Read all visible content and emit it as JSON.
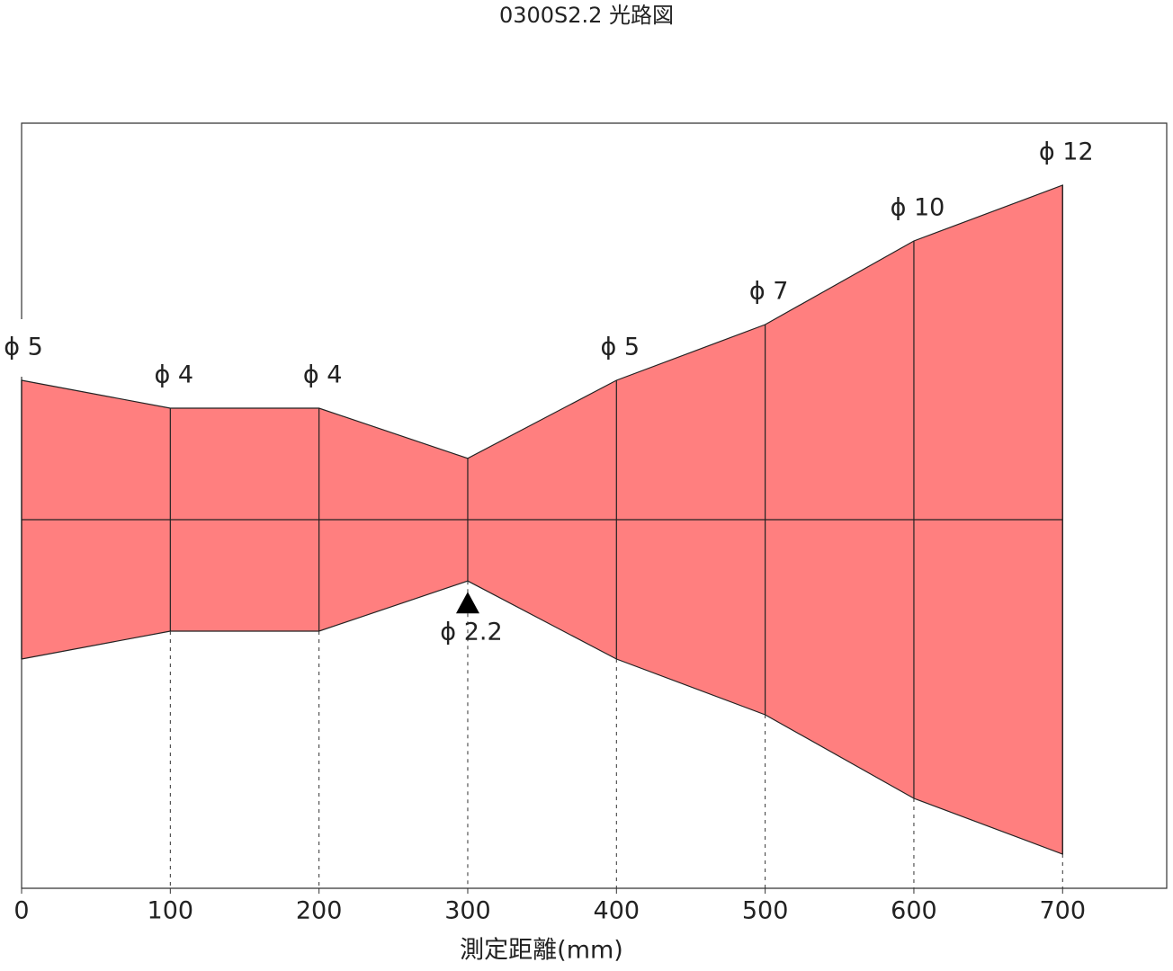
{
  "chart_data": {
    "type": "beam",
    "title": "0300S2.2 光路図",
    "x_label": "測定距離(mm)",
    "x": [
      0,
      100,
      200,
      300,
      400,
      500,
      600,
      700
    ],
    "values": [
      5,
      4,
      4,
      2.2,
      5,
      7,
      10,
      12
    ],
    "value_labels": [
      "ϕ 5",
      "ϕ 4",
      "ϕ 4",
      "ϕ 2.2",
      "ϕ 5",
      "ϕ 7",
      "ϕ 10",
      "ϕ 12"
    ],
    "color": "#ff7f7f",
    "xlim": [
      0,
      770
    ],
    "xticks": [
      0,
      100,
      200,
      300,
      400,
      500,
      600,
      700
    ]
  }
}
